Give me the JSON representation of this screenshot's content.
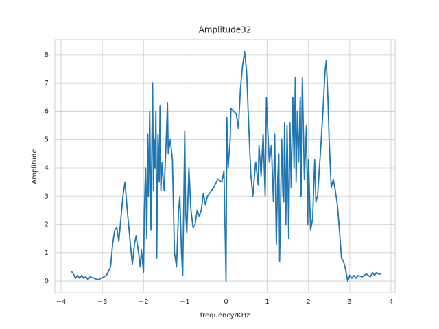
{
  "chart_data": {
    "type": "line",
    "title": "Amplitude32",
    "x_label": "frequency/KHz",
    "y_label": "Amplitude",
    "x": [
      -3.75,
      -3.7,
      -3.65,
      -3.6,
      -3.55,
      -3.5,
      -3.45,
      -3.4,
      -3.35,
      -3.3,
      -3.2,
      -3.1,
      -3.0,
      -2.9,
      -2.8,
      -2.75,
      -2.7,
      -2.65,
      -2.6,
      -2.55,
      -2.5,
      -2.45,
      -2.4,
      -2.35,
      -2.3,
      -2.27,
      -2.22,
      -2.18,
      -2.12,
      -2.08,
      -2.05,
      -2.0,
      -1.98,
      -1.95,
      -1.92,
      -1.9,
      -1.88,
      -1.85,
      -1.82,
      -1.8,
      -1.78,
      -1.76,
      -1.74,
      -1.72,
      -1.7,
      -1.68,
      -1.65,
      -1.62,
      -1.6,
      -1.58,
      -1.55,
      -1.52,
      -1.5,
      -1.45,
      -1.42,
      -1.4,
      -1.35,
      -1.3,
      -1.25,
      -1.2,
      -1.15,
      -1.12,
      -1.08,
      -1.05,
      -1.0,
      -0.98,
      -0.95,
      -0.9,
      -0.85,
      -0.8,
      -0.75,
      -0.7,
      -0.65,
      -0.6,
      -0.55,
      -0.5,
      -0.45,
      -0.4,
      -0.3,
      -0.2,
      -0.1,
      -0.05,
      0,
      0.02,
      0.05,
      0.1,
      0.12,
      0.18,
      0.25,
      0.3,
      0.35,
      0.4,
      0.45,
      0.5,
      0.55,
      0.6,
      0.65,
      0.7,
      0.72,
      0.78,
      0.8,
      0.85,
      0.9,
      0.95,
      0.98,
      1.0,
      1.05,
      1.1,
      1.15,
      1.18,
      1.22,
      1.25,
      1.28,
      1.3,
      1.35,
      1.38,
      1.4,
      1.42,
      1.45,
      1.48,
      1.5,
      1.52,
      1.55,
      1.58,
      1.62,
      1.65,
      1.68,
      1.7,
      1.73,
      1.76,
      1.8,
      1.82,
      1.85,
      1.9,
      1.95,
      1.98,
      2.0,
      2.05,
      2.1,
      2.15,
      2.18,
      2.22,
      2.3,
      2.35,
      2.4,
      2.43,
      2.47,
      2.5,
      2.55,
      2.6,
      2.65,
      2.7,
      2.75,
      2.8,
      2.85,
      2.9,
      2.95,
      3.0,
      3.05,
      3.1,
      3.15,
      3.2,
      3.3,
      3.4,
      3.5,
      3.55,
      3.6,
      3.65,
      3.7,
      3.75
    ],
    "series": [
      {
        "color": "#1f77b4",
        "values": [
          0.35,
          0.25,
          0.1,
          0.2,
          0.1,
          0.2,
          0.1,
          0.15,
          0.05,
          0.15,
          0.1,
          0.05,
          0.12,
          0.2,
          0.5,
          1.3,
          1.8,
          1.9,
          1.4,
          2.2,
          3.0,
          3.5,
          2.6,
          1.8,
          1.0,
          0.6,
          1.3,
          1.6,
          1.0,
          0.5,
          1.1,
          0.3,
          2.5,
          4.0,
          1.5,
          5.2,
          3.0,
          6.0,
          1.8,
          4.5,
          7.0,
          3.2,
          5.0,
          4.0,
          6.0,
          0.8,
          5.2,
          3.5,
          6.2,
          3.2,
          4.2,
          3.5,
          3.2,
          5.0,
          6.3,
          4.5,
          5.0,
          4.3,
          1.0,
          0.5,
          2.5,
          3.0,
          1.0,
          0.2,
          5.3,
          2.5,
          1.7,
          4.0,
          2.5,
          1.9,
          2.0,
          2.5,
          2.3,
          2.5,
          3.1,
          2.7,
          3.0,
          3.1,
          3.3,
          3.6,
          3.5,
          3.9,
          0,
          5.8,
          4.0,
          5.0,
          6.1,
          6.0,
          5.9,
          5.4,
          6.8,
          7.6,
          8.1,
          7.4,
          5.5,
          3.8,
          3.0,
          3.9,
          4.2,
          3.4,
          4.8,
          3.7,
          5.2,
          3.0,
          6.5,
          5.7,
          4.2,
          4.8,
          2.8,
          5.2,
          1.3,
          3.5,
          4.5,
          0.7,
          5.0,
          3.0,
          2.8,
          5.6,
          2.0,
          5.5,
          3.8,
          1.5,
          5.6,
          3.3,
          6.5,
          4.0,
          7.2,
          3.5,
          6.0,
          4.2,
          6.5,
          3.0,
          7.2,
          3.6,
          5.5,
          2.0,
          4.3,
          1.8,
          2.2,
          4.3,
          2.8,
          3.0,
          4.8,
          6.0,
          7.4,
          7.8,
          6.5,
          5.0,
          3.3,
          3.6,
          3.2,
          2.7,
          1.8,
          0.8,
          0.7,
          0.4,
          0.0,
          0.2,
          0.1,
          0.2,
          0.1,
          0.2,
          0.15,
          0.25,
          0.15,
          0.3,
          0.2,
          0.3,
          0.25,
          0.25
        ]
      }
    ],
    "xlim": [
      -4.15,
      4.1
    ],
    "ylim": [
      -0.41,
      8.53
    ],
    "xticks": [
      {
        "value": -4,
        "label": "−4"
      },
      {
        "value": -3,
        "label": "−3"
      },
      {
        "value": -2,
        "label": "−2"
      },
      {
        "value": -1,
        "label": "−1"
      },
      0,
      1,
      2,
      3,
      4
    ],
    "yticks": [
      0,
      1,
      2,
      3,
      4,
      5,
      6,
      7,
      8
    ],
    "grid": true
  }
}
